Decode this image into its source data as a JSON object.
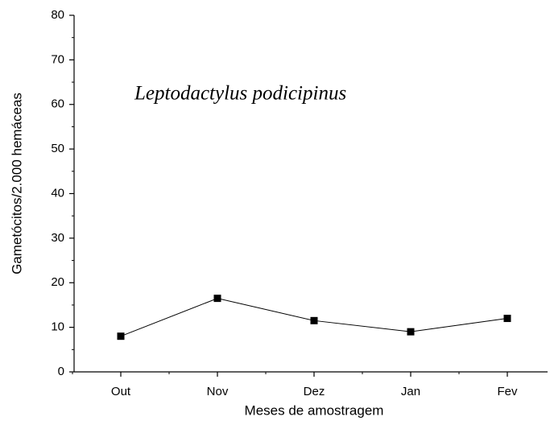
{
  "chart_data": {
    "type": "line",
    "annotation": "Leptodactylus podicipinus",
    "x_label": "Meses de amostragem",
    "y_label": "Gametócitos/2.000 hemáceas",
    "categories": [
      "Out",
      "Nov",
      "Dez",
      "Jan",
      "Fev"
    ],
    "series": [
      {
        "name": "Leptodactylus podicipinus",
        "color": "#000000",
        "values": [
          8,
          16.5,
          11.5,
          9,
          12
        ]
      }
    ],
    "ylim": [
      0,
      80
    ],
    "yticks": [
      0,
      10,
      20,
      30,
      40,
      50,
      60,
      70,
      80
    ],
    "grid": false
  }
}
